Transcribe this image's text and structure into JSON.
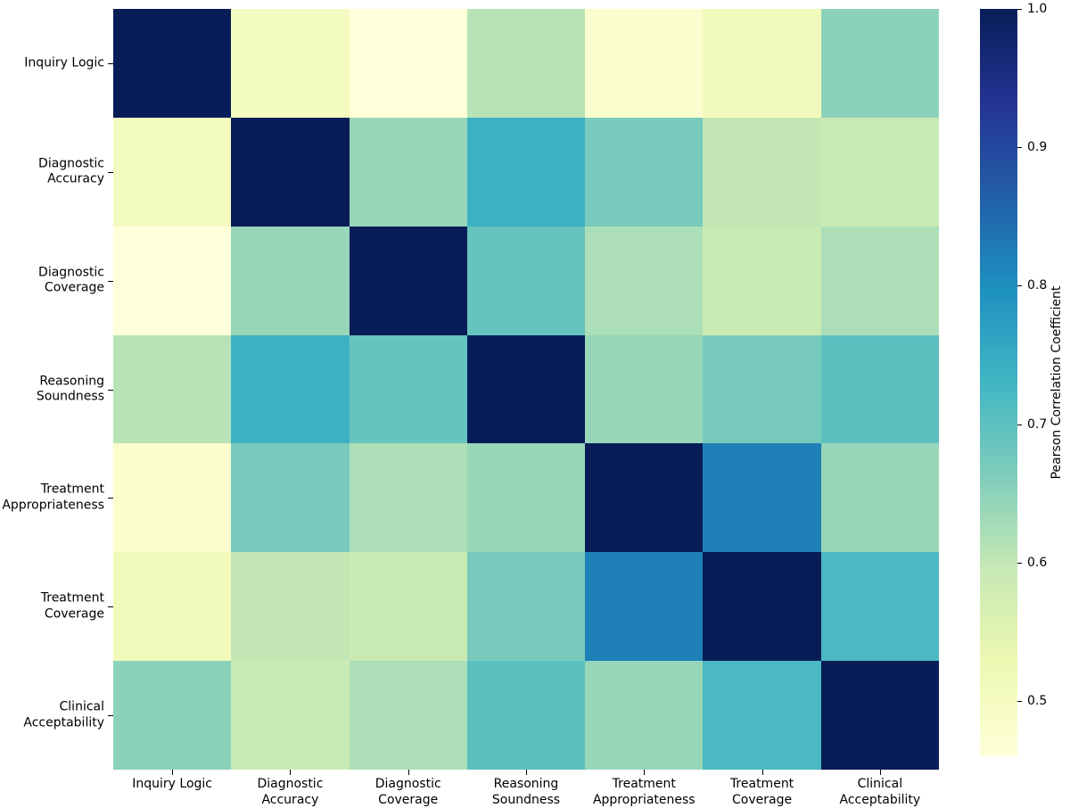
{
  "chart_data": {
    "type": "heatmap",
    "title": "",
    "categories": [
      "Inquiry Logic",
      "Diagnostic\nAccuracy",
      "Diagnostic\nCoverage",
      "Reasoning\nSoundness",
      "Treatment\nAppropriateness",
      "Treatment\nCoverage",
      "Clinical\nAcceptability"
    ],
    "matrix": [
      [
        1.0,
        0.5,
        0.46,
        0.61,
        0.48,
        0.51,
        0.65
      ],
      [
        0.5,
        1.0,
        0.64,
        0.74,
        0.67,
        0.6,
        0.59
      ],
      [
        0.46,
        0.64,
        1.0,
        0.69,
        0.62,
        0.59,
        0.62
      ],
      [
        0.61,
        0.74,
        0.69,
        1.0,
        0.64,
        0.67,
        0.7
      ],
      [
        0.48,
        0.67,
        0.62,
        0.64,
        1.0,
        0.82,
        0.64
      ],
      [
        0.51,
        0.6,
        0.59,
        0.67,
        0.82,
        1.0,
        0.72
      ],
      [
        0.65,
        0.59,
        0.62,
        0.7,
        0.64,
        0.72,
        1.0
      ]
    ],
    "vmin": 0.46,
    "vmax": 1.0,
    "grid": false,
    "colorbar": {
      "label": "Pearson Correlation Coefficient",
      "ticks": [
        "1.0",
        "0.9",
        "0.8",
        "0.7",
        "0.6",
        "0.5"
      ],
      "position": "right"
    },
    "colormap": {
      "name": "YlGnBu",
      "stops": [
        "#ffffd9",
        "#edf8b1",
        "#c7e9b4",
        "#7fcdbb",
        "#41b6c4",
        "#1d91c0",
        "#225ea8",
        "#253494",
        "#081d58"
      ]
    }
  }
}
